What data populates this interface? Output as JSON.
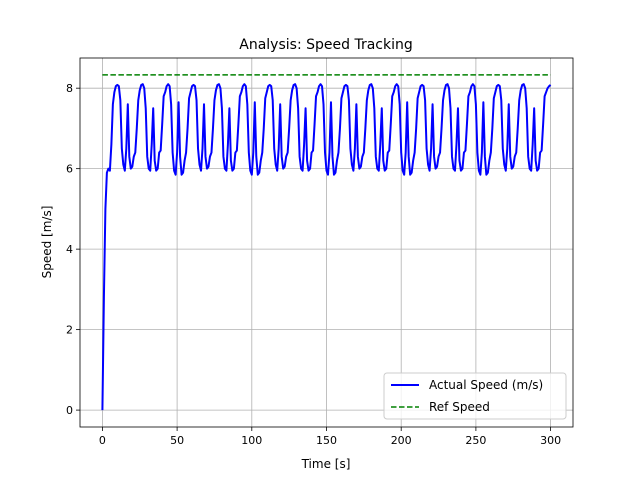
{
  "chart_data": {
    "type": "line",
    "title": "Analysis: Speed Tracking",
    "xlabel": "Time [s]",
    "ylabel": "Speed [m/s]",
    "xlim": [
      -15,
      315
    ],
    "ylim": [
      -0.42,
      8.75
    ],
    "xticks": [
      0,
      50,
      100,
      150,
      200,
      250,
      300
    ],
    "yticks": [
      0,
      2,
      4,
      6,
      8
    ],
    "grid": true,
    "legend_position": "lower-right",
    "x_start": 0,
    "x_step": 1,
    "series": [
      {
        "name": "Actual Speed (m/s)",
        "color": "#0000ff",
        "style": "solid",
        "values": [
          0,
          2.8,
          5.0,
          5.9,
          6.0,
          5.95,
          6.6,
          7.6,
          7.9,
          8.05,
          8.08,
          8.05,
          7.7,
          6.5,
          6.1,
          5.95,
          6.5,
          7.6,
          6.3,
          6.0,
          6.05,
          6.3,
          6.4,
          7.0,
          7.7,
          7.95,
          8.08,
          8.1,
          8.0,
          7.5,
          6.3,
          6.0,
          5.95,
          6.6,
          7.5,
          6.2,
          5.95,
          6.0,
          6.4,
          6.45,
          7.1,
          7.8,
          7.9,
          8.05,
          8.1,
          8.05,
          7.6,
          6.4,
          5.95,
          5.85,
          6.4,
          7.65,
          6.3,
          5.85,
          5.9,
          6.2,
          6.4,
          7.0,
          7.75,
          7.9,
          8.05,
          8.08,
          8.05,
          7.7,
          6.5,
          6.1,
          5.95,
          6.5,
          7.6,
          6.3,
          6.0,
          6.05,
          6.3,
          6.4,
          7.0,
          7.7,
          7.95,
          8.08,
          8.1,
          8.0,
          7.5,
          6.3,
          6.0,
          5.95,
          6.6,
          7.5,
          6.2,
          5.95,
          6.0,
          6.4,
          6.45,
          7.1,
          7.8,
          7.9,
          8.05,
          8.1,
          8.05,
          7.6,
          6.4,
          5.95,
          5.85,
          6.4,
          7.65,
          6.3,
          5.85,
          5.9,
          6.2,
          6.4,
          7.0,
          7.75,
          7.9,
          8.05,
          8.08,
          8.05,
          7.7,
          6.5,
          6.1,
          5.95,
          6.5,
          7.6,
          6.3,
          6.0,
          6.05,
          6.3,
          6.4,
          7.0,
          7.7,
          7.95,
          8.08,
          8.1,
          8.0,
          7.5,
          6.3,
          6.0,
          5.95,
          6.6,
          7.5,
          6.2,
          5.95,
          6.0,
          6.4,
          6.45,
          7.1,
          7.8,
          7.9,
          8.05,
          8.1,
          8.05,
          7.6,
          6.4,
          5.95,
          5.85,
          6.4,
          7.65,
          6.3,
          5.85,
          5.9,
          6.2,
          6.4,
          7.0,
          7.75,
          7.9,
          8.05,
          8.08,
          8.05,
          7.7,
          6.5,
          6.1,
          5.95,
          6.5,
          7.6,
          6.3,
          6.0,
          6.05,
          6.3,
          6.4,
          7.0,
          7.7,
          7.95,
          8.08,
          8.1,
          8.0,
          7.5,
          6.3,
          6.0,
          5.95,
          6.6,
          7.5,
          6.2,
          5.95,
          6.0,
          6.4,
          6.45,
          7.1,
          7.8,
          7.9,
          8.05,
          8.1,
          8.05,
          7.6,
          6.4,
          5.95,
          5.85,
          6.4,
          7.65,
          6.3,
          5.85,
          5.9,
          6.2,
          6.4,
          7.0,
          7.75,
          7.9,
          8.05,
          8.08,
          8.05,
          7.7,
          6.5,
          6.1,
          5.95,
          6.5,
          7.6,
          6.3,
          6.0,
          6.05,
          6.3,
          6.4,
          7.0,
          7.7,
          7.95,
          8.08,
          8.1,
          8.0,
          7.5,
          6.3,
          6.0,
          5.95,
          6.6,
          7.5,
          6.2,
          5.95,
          6.0,
          6.4,
          6.45,
          7.1,
          7.8,
          7.9,
          8.05,
          8.1,
          8.05,
          7.6,
          6.4,
          5.95,
          5.85,
          6.4,
          7.65,
          6.3,
          5.85,
          5.9,
          6.2,
          6.4,
          7.0,
          7.75,
          7.9,
          8.05,
          8.08,
          8.05,
          7.7,
          6.5,
          6.1,
          5.95,
          6.5,
          7.6,
          6.3,
          6.0,
          6.05,
          6.3,
          6.4,
          7.0,
          7.7,
          7.95,
          8.08,
          8.1,
          8.0,
          7.5,
          6.3,
          6.0,
          5.95,
          6.6,
          7.5,
          6.2,
          5.95,
          6.0,
          6.4,
          6.45,
          7.1,
          7.8,
          7.9,
          8.0,
          8.05,
          8.08
        ]
      },
      {
        "name": "Ref Speed",
        "color": "#008000",
        "style": "dashed",
        "x": [
          0,
          300
        ],
        "values": [
          8.33,
          8.33
        ]
      }
    ]
  }
}
